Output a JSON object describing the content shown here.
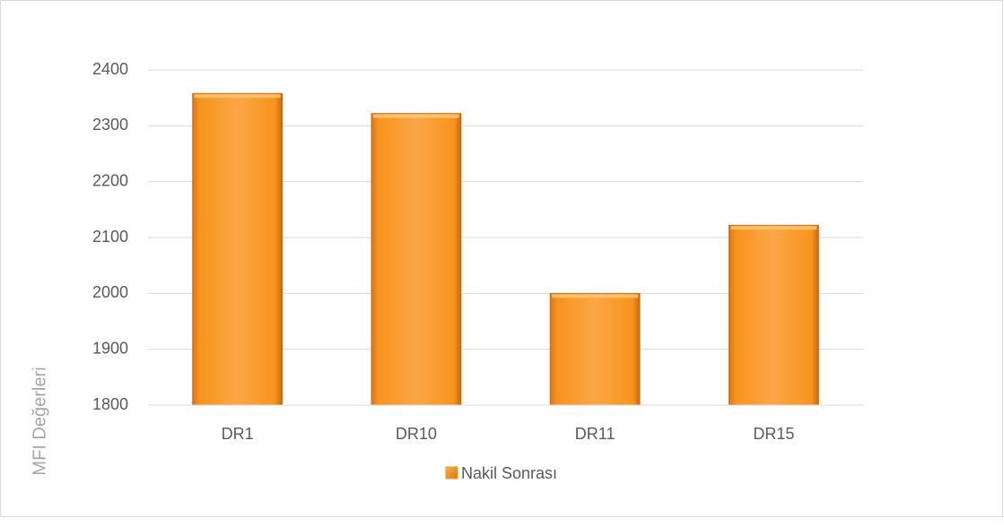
{
  "chart_data": {
    "type": "bar",
    "y_label": "MFI Değerleri",
    "categories": [
      "DR1",
      "DR10",
      "DR11",
      "DR15"
    ],
    "series": [
      {
        "name": "Nakil Sonrası",
        "color": "#f7941d",
        "values": [
          2358,
          2322,
          2000,
          2122
        ]
      }
    ],
    "ylim": [
      1800,
      2400
    ],
    "yticks": [
      1800,
      1900,
      2000,
      2100,
      2200,
      2300,
      2400
    ],
    "grid": true,
    "legend": "bottom"
  }
}
